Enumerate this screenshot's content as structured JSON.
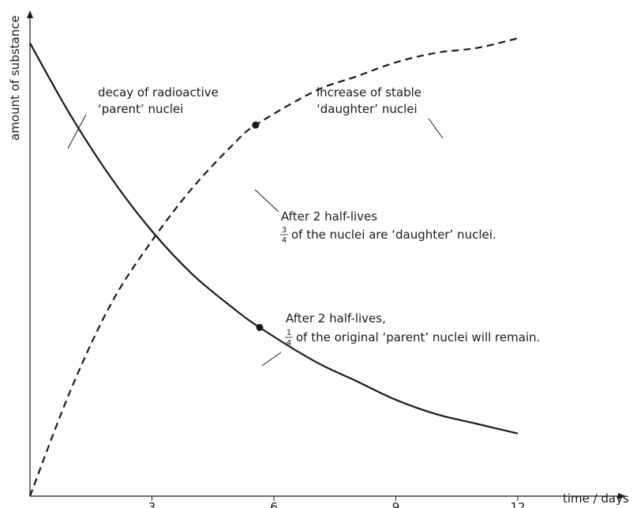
{
  "chart_data": {
    "type": "line",
    "title": "",
    "xlabel": "time / days",
    "ylabel": "amount of substance",
    "xlim": [
      0,
      15
    ],
    "ylim": [
      0,
      1
    ],
    "xticks": [
      "3",
      "6",
      "9",
      "12"
    ],
    "yticks": [],
    "grid": false,
    "half_life_days": 3,
    "series": [
      {
        "name": "",
        "style": "solid",
        "x": [
          0,
          1,
          2,
          3,
          4,
          5,
          5.65,
          7,
          8,
          9,
          10,
          11,
          12
        ],
        "y": [
          0.94,
          0.79,
          0.66,
          0.55,
          0.46,
          0.39,
          0.35,
          0.28,
          0.24,
          0.2,
          0.17,
          0.15,
          0.13
        ]
      },
      {
        "name": "",
        "style": "dashed",
        "x": [
          0,
          1,
          2,
          3,
          4,
          5,
          5.55,
          7,
          8,
          9,
          10,
          11,
          12
        ],
        "y": [
          0,
          0.22,
          0.4,
          0.53,
          0.64,
          0.73,
          0.77,
          0.84,
          0.87,
          0.9,
          0.92,
          0.93,
          0.95
        ]
      }
    ],
    "annotations": [
      {
        "id": "parent",
        "lines": [
          "decay of radioactive",
          "‘parent’ nuclei"
        ]
      },
      {
        "id": "daughter",
        "lines": [
          "increase of stable",
          "‘daughter’ nuclei"
        ]
      },
      {
        "id": "daughter_point",
        "x": 5.55,
        "y": 0.77,
        "line1": "After 2 half-lives",
        "frac_num": "3",
        "frac_den": "4",
        "line2": "of the nuclei are ‘daughter’ nuclei."
      },
      {
        "id": "parent_point",
        "x": 5.65,
        "y": 0.35,
        "line1": "After 2 half-lives,",
        "frac_num": "1",
        "frac_den": "4",
        "line2": "of the original ‘parent’ nuclei will remain."
      }
    ]
  }
}
